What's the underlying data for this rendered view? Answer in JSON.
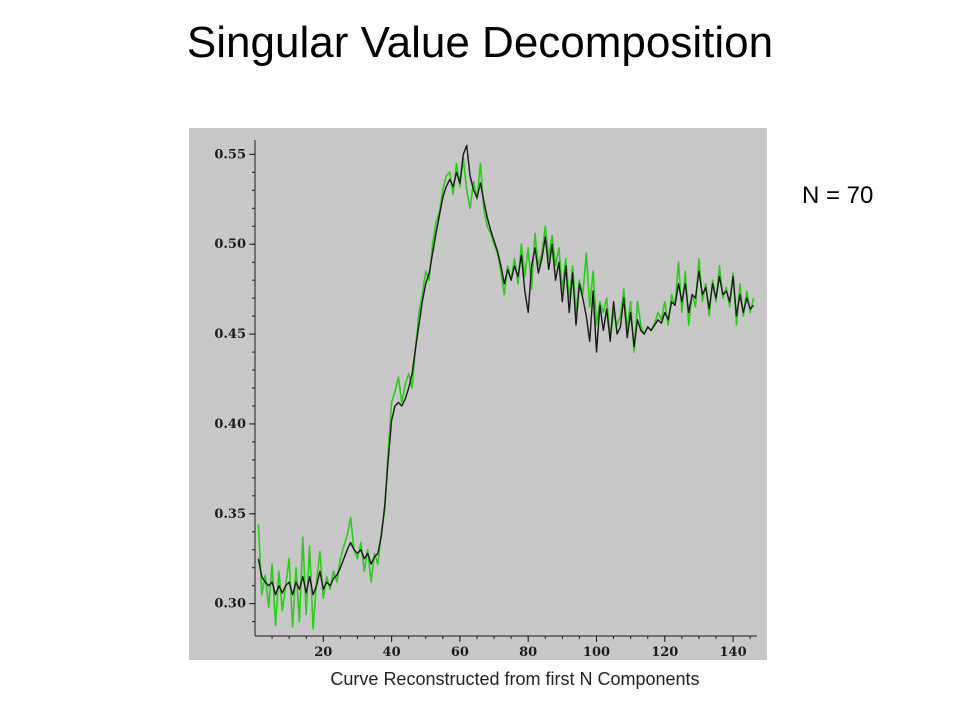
{
  "slide": {
    "title": "Singular Value Decomposition",
    "n_label": "N = 70",
    "caption": "Curve Reconstructed from first N Components"
  },
  "colors": {
    "background": "#ffffff",
    "plot_background": "#c8c8c8",
    "original_series": "#2ecc1a",
    "reconstructed_series": "#1a1a1a"
  },
  "chart_data": {
    "type": "line",
    "title": "",
    "xlabel": "",
    "ylabel": "",
    "xlim": [
      0,
      147
    ],
    "ylim": [
      0.282,
      0.558
    ],
    "xticks": [
      20,
      40,
      60,
      80,
      100,
      120,
      140
    ],
    "xtick_labels": [
      "20",
      "40",
      "60",
      "80",
      "100",
      "120",
      "140"
    ],
    "yticks": [
      0.3,
      0.35,
      0.4,
      0.45,
      0.5,
      0.55
    ],
    "ytick_labels": [
      "0.30",
      "0.35",
      "0.40",
      "0.45",
      "0.50",
      "0.55"
    ],
    "grid": false,
    "legend": "none",
    "series": [
      {
        "color": "#2ecc1a",
        "x": [
          1,
          2,
          3,
          4,
          5,
          6,
          7,
          8,
          9,
          10,
          11,
          12,
          13,
          14,
          15,
          16,
          17,
          18,
          19,
          20,
          21,
          22,
          23,
          24,
          25,
          26,
          27,
          28,
          29,
          30,
          31,
          32,
          33,
          34,
          35,
          36,
          37,
          38,
          39,
          40,
          41,
          42,
          43,
          44,
          45,
          46,
          47,
          48,
          49,
          50,
          51,
          52,
          53,
          54,
          55,
          56,
          57,
          58,
          59,
          60,
          61,
          62,
          63,
          64,
          65,
          66,
          67,
          68,
          69,
          70,
          71,
          72,
          73,
          74,
          75,
          76,
          77,
          78,
          79,
          80,
          81,
          82,
          83,
          84,
          85,
          86,
          87,
          88,
          89,
          90,
          91,
          92,
          93,
          94,
          95,
          96,
          97,
          98,
          99,
          100,
          101,
          102,
          103,
          104,
          105,
          106,
          107,
          108,
          109,
          110,
          111,
          112,
          113,
          114,
          115,
          116,
          117,
          118,
          119,
          120,
          121,
          122,
          123,
          124,
          125,
          126,
          127,
          128,
          129,
          130,
          131,
          132,
          133,
          134,
          135,
          136,
          137,
          138,
          139,
          140,
          141,
          142,
          143,
          144,
          145,
          146
        ],
        "values": [
          0.344,
          0.305,
          0.316,
          0.298,
          0.322,
          0.288,
          0.318,
          0.296,
          0.31,
          0.325,
          0.287,
          0.32,
          0.29,
          0.337,
          0.294,
          0.332,
          0.286,
          0.312,
          0.329,
          0.303,
          0.315,
          0.308,
          0.318,
          0.312,
          0.325,
          0.332,
          0.338,
          0.348,
          0.33,
          0.325,
          0.334,
          0.318,
          0.33,
          0.312,
          0.328,
          0.322,
          0.34,
          0.352,
          0.385,
          0.412,
          0.418,
          0.426,
          0.412,
          0.422,
          0.428,
          0.42,
          0.442,
          0.462,
          0.472,
          0.485,
          0.48,
          0.5,
          0.512,
          0.518,
          0.53,
          0.538,
          0.54,
          0.528,
          0.545,
          0.532,
          0.548,
          0.53,
          0.52,
          0.535,
          0.525,
          0.545,
          0.52,
          0.51,
          0.506,
          0.5,
          0.495,
          0.485,
          0.472,
          0.488,
          0.48,
          0.492,
          0.478,
          0.5,
          0.482,
          0.498,
          0.475,
          0.506,
          0.488,
          0.495,
          0.51,
          0.492,
          0.505,
          0.488,
          0.498,
          0.475,
          0.492,
          0.47,
          0.488,
          0.462,
          0.48,
          0.472,
          0.495,
          0.465,
          0.485,
          0.455,
          0.468,
          0.462,
          0.47,
          0.448,
          0.462,
          0.455,
          0.46,
          0.475,
          0.452,
          0.468,
          0.44,
          0.468,
          0.455,
          0.45,
          0.454,
          0.452,
          0.456,
          0.462,
          0.458,
          0.468,
          0.455,
          0.472,
          0.466,
          0.49,
          0.462,
          0.485,
          0.455,
          0.472,
          0.465,
          0.492,
          0.468,
          0.478,
          0.46,
          0.48,
          0.468,
          0.488,
          0.47,
          0.476,
          0.465,
          0.484,
          0.455,
          0.478,
          0.46,
          0.474,
          0.462,
          0.47
        ]
      },
      {
        "color": "#1a1a1a",
        "x": [
          1,
          2,
          3,
          4,
          5,
          6,
          7,
          8,
          9,
          10,
          11,
          12,
          13,
          14,
          15,
          16,
          17,
          18,
          19,
          20,
          21,
          22,
          23,
          24,
          25,
          26,
          27,
          28,
          29,
          30,
          31,
          32,
          33,
          34,
          35,
          36,
          37,
          38,
          39,
          40,
          41,
          42,
          43,
          44,
          45,
          46,
          47,
          48,
          49,
          50,
          51,
          52,
          53,
          54,
          55,
          56,
          57,
          58,
          59,
          60,
          61,
          62,
          63,
          64,
          65,
          66,
          67,
          68,
          69,
          70,
          71,
          72,
          73,
          74,
          75,
          76,
          77,
          78,
          79,
          80,
          81,
          82,
          83,
          84,
          85,
          86,
          87,
          88,
          89,
          90,
          91,
          92,
          93,
          94,
          95,
          96,
          97,
          98,
          99,
          100,
          101,
          102,
          103,
          104,
          105,
          106,
          107,
          108,
          109,
          110,
          111,
          112,
          113,
          114,
          115,
          116,
          117,
          118,
          119,
          120,
          121,
          122,
          123,
          124,
          125,
          126,
          127,
          128,
          129,
          130,
          131,
          132,
          133,
          134,
          135,
          136,
          137,
          138,
          139,
          140,
          141,
          142,
          143,
          144,
          145,
          146
        ],
        "values": [
          0.325,
          0.315,
          0.312,
          0.31,
          0.312,
          0.305,
          0.31,
          0.306,
          0.31,
          0.312,
          0.305,
          0.312,
          0.308,
          0.315,
          0.306,
          0.315,
          0.305,
          0.31,
          0.318,
          0.308,
          0.312,
          0.31,
          0.314,
          0.316,
          0.32,
          0.325,
          0.33,
          0.334,
          0.33,
          0.328,
          0.33,
          0.325,
          0.328,
          0.322,
          0.326,
          0.328,
          0.338,
          0.355,
          0.38,
          0.402,
          0.41,
          0.412,
          0.41,
          0.414,
          0.42,
          0.428,
          0.442,
          0.455,
          0.468,
          0.478,
          0.484,
          0.495,
          0.506,
          0.516,
          0.526,
          0.532,
          0.536,
          0.532,
          0.54,
          0.534,
          0.55,
          0.555,
          0.538,
          0.53,
          0.526,
          0.534,
          0.524,
          0.515,
          0.508,
          0.502,
          0.496,
          0.488,
          0.478,
          0.486,
          0.48,
          0.488,
          0.482,
          0.494,
          0.474,
          0.462,
          0.488,
          0.498,
          0.484,
          0.492,
          0.504,
          0.486,
          0.5,
          0.48,
          0.49,
          0.468,
          0.488,
          0.462,
          0.484,
          0.455,
          0.478,
          0.47,
          0.46,
          0.446,
          0.474,
          0.44,
          0.466,
          0.452,
          0.464,
          0.446,
          0.468,
          0.45,
          0.454,
          0.47,
          0.448,
          0.462,
          0.443,
          0.458,
          0.452,
          0.45,
          0.454,
          0.452,
          0.455,
          0.458,
          0.456,
          0.462,
          0.458,
          0.468,
          0.466,
          0.478,
          0.468,
          0.478,
          0.462,
          0.472,
          0.47,
          0.485,
          0.472,
          0.476,
          0.464,
          0.478,
          0.47,
          0.482,
          0.472,
          0.474,
          0.468,
          0.482,
          0.46,
          0.472,
          0.462,
          0.47,
          0.464,
          0.466
        ]
      }
    ]
  }
}
